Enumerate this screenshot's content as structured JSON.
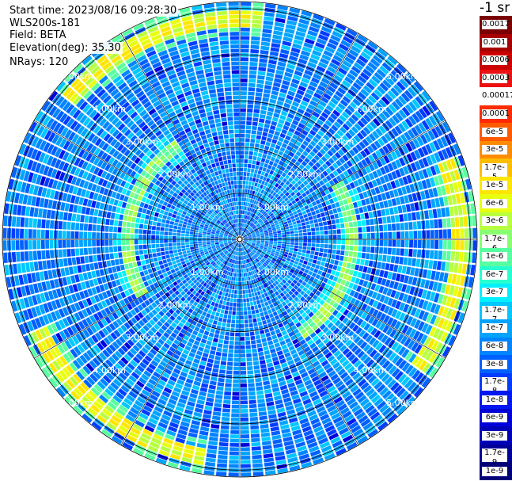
{
  "header": {
    "start_time": "Start time: 2023/08/16 09:28:30",
    "instrument": "WLS200s-181",
    "field": "Field: BETA",
    "elevation": "Elevation(deg): 35.30",
    "nrays": "NRays: 120"
  },
  "units_label": "-1 sr",
  "chart_data": {
    "type": "heatmap",
    "projection": "polar",
    "rays": 120,
    "range_rings_km": [
      1,
      2,
      3,
      4,
      5
    ],
    "ring_labels": [
      "1.00km",
      "2.00km",
      "3.00km",
      "4.00km",
      "5.00km"
    ],
    "max_range_km": 5.15,
    "colorscale": "log",
    "colorbar": {
      "entries": [
        {
          "label": "0.0017",
          "color": "#7a0000"
        },
        {
          "label": "0.001",
          "color": "#a80000"
        },
        {
          "label": "0.0006",
          "color": "#cc0000"
        },
        {
          "label": "0.0003",
          "color": "#ec1010"
        },
        {
          "label": "0.00017",
          "color": "#ffffff"
        },
        {
          "label": "0.0001",
          "color": "#ff2a00"
        },
        {
          "label": "6e-5",
          "color": "#ff5a00"
        },
        {
          "label": "3e-5",
          "color": "#ff8c00"
        },
        {
          "label": "1.7e-5",
          "color": "#ffbd00"
        },
        {
          "label": "1e-5",
          "color": "#ffe600"
        },
        {
          "label": "6e-6",
          "color": "#e8ff10"
        },
        {
          "label": "3e-6",
          "color": "#b8ff40"
        },
        {
          "label": "1.7e-6",
          "color": "#88ff70"
        },
        {
          "label": "1e-6",
          "color": "#58ffa0"
        },
        {
          "label": "6e-7",
          "color": "#28ffd0"
        },
        {
          "label": "3e-7",
          "color": "#00f0ff"
        },
        {
          "label": "1.7e-7",
          "color": "#00c8ff"
        },
        {
          "label": "1e-7",
          "color": "#00a4ff"
        },
        {
          "label": "6e-8",
          "color": "#0084ff"
        },
        {
          "label": "3e-8",
          "color": "#0060ff"
        },
        {
          "label": "1.7e-8",
          "color": "#003cff"
        },
        {
          "label": "1e-8",
          "color": "#0018f0"
        },
        {
          "label": "6e-9",
          "color": "#0000d8"
        },
        {
          "label": "3e-9",
          "color": "#0000b8"
        },
        {
          "label": "1.7e-9",
          "color": "#000098"
        },
        {
          "label": "1e-9",
          "color": "#000078"
        }
      ]
    },
    "aerosol_bands": [
      {
        "name": "outer_ring",
        "range_km": 4.75,
        "value": "1e-5"
      },
      {
        "name": "inner_ring",
        "range_km": 2.4,
        "value": "3e-6"
      }
    ],
    "background_value": "6e-8"
  }
}
